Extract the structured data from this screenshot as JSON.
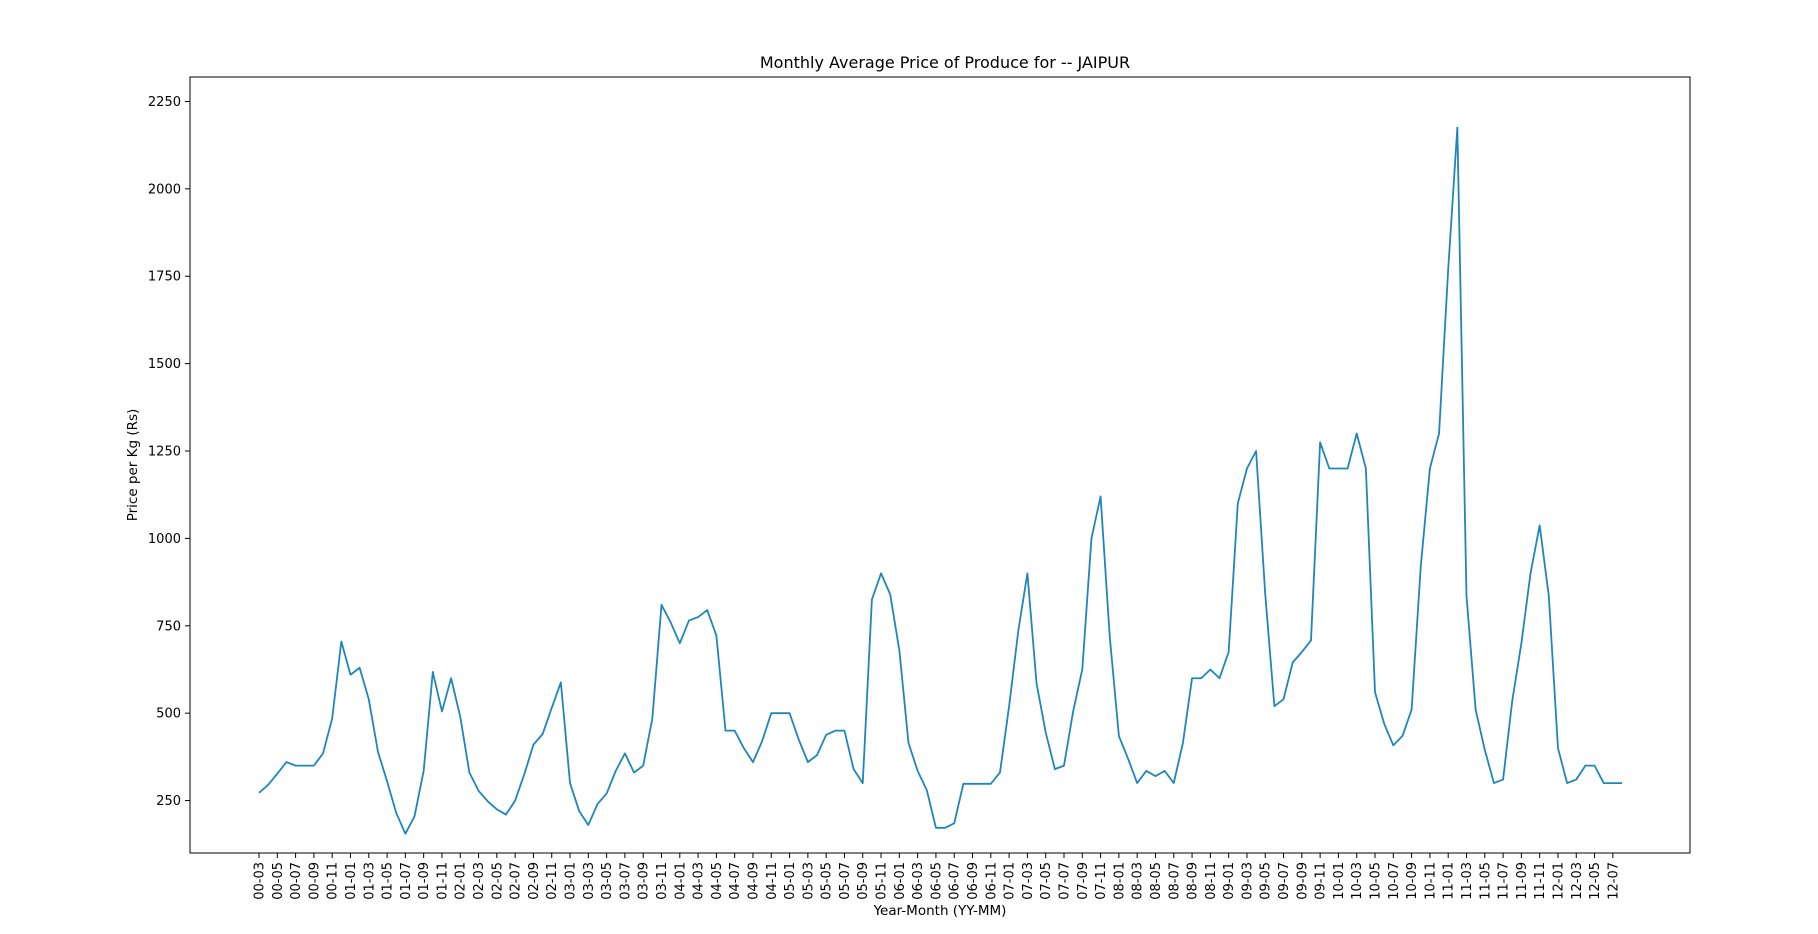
{
  "chart_data": {
    "type": "line",
    "title": "Monthly Average Price of Produce for  --  JAIPUR",
    "xlabel": "Year-Month (YY-MM)",
    "ylabel": "Price per Kg (Rs)",
    "ylim": [
      100,
      2320
    ],
    "yticks": [
      250,
      500,
      750,
      1000,
      1250,
      1500,
      1750,
      2000,
      2250
    ],
    "grid": false,
    "line_color": "#1f86bb",
    "xticks": [
      "00-03",
      "00-05",
      "00-07",
      "00-09",
      "00-11",
      "01-01",
      "01-03",
      "01-05",
      "01-07",
      "01-09",
      "01-11",
      "02-01",
      "02-03",
      "02-05",
      "02-07",
      "02-09",
      "02-11",
      "03-01",
      "03-03",
      "03-05",
      "03-07",
      "03-09",
      "03-11",
      "04-01",
      "04-03",
      "04-05",
      "04-07",
      "04-09",
      "04-11",
      "05-01",
      "05-03",
      "05-05",
      "05-07",
      "05-09",
      "05-11",
      "06-01",
      "06-03",
      "06-05",
      "06-07",
      "06-09",
      "06-11",
      "07-01",
      "07-03",
      "07-05",
      "07-07",
      "07-09",
      "07-11",
      "08-01",
      "08-03",
      "08-05",
      "08-07",
      "08-09",
      "08-11",
      "09-01",
      "09-03",
      "09-05",
      "09-07",
      "09-09",
      "09-11",
      "10-01",
      "10-03",
      "10-05",
      "10-07",
      "10-09",
      "10-11",
      "11-01",
      "11-03",
      "11-05",
      "11-07",
      "11-09",
      "11-11",
      "12-01",
      "12-03",
      "12-05",
      "12-07"
    ],
    "series": [
      {
        "values": [
          272,
          295,
          327,
          360,
          350,
          350,
          350,
          385,
          485,
          705,
          610,
          630,
          540,
          390,
          305,
          215,
          155,
          205,
          335,
          618,
          505,
          600,
          490,
          330,
          278,
          248,
          225,
          210,
          250,
          325,
          410,
          440,
          515,
          588,
          300,
          220,
          180,
          240,
          270,
          335,
          385,
          330,
          350,
          485,
          810,
          760,
          700,
          765,
          775,
          795,
          722,
          450,
          450,
          400,
          360,
          420,
          500,
          500,
          500,
          425,
          360,
          380,
          438,
          450,
          450,
          340,
          300,
          825,
          900,
          840,
          680,
          415,
          335,
          280,
          172,
          172,
          185,
          298,
          298,
          298,
          298,
          330,
          520,
          735,
          900,
          585,
          445,
          340,
          350,
          505,
          625,
          1000,
          1120,
          720,
          435,
          370,
          300,
          335,
          320,
          335,
          300,
          415,
          600,
          600,
          625,
          600,
          675,
          1100,
          1200,
          1250,
          840,
          520,
          540,
          645,
          675,
          708,
          1275,
          1200,
          1200,
          1200,
          1300,
          1200,
          560,
          470,
          408,
          435,
          510,
          920,
          1200,
          1300,
          1770,
          2175,
          835,
          510,
          395,
          300,
          310,
          535,
          700,
          900,
          1037,
          835,
          400,
          300,
          310,
          350,
          350,
          300,
          300,
          300
        ]
      }
    ]
  }
}
